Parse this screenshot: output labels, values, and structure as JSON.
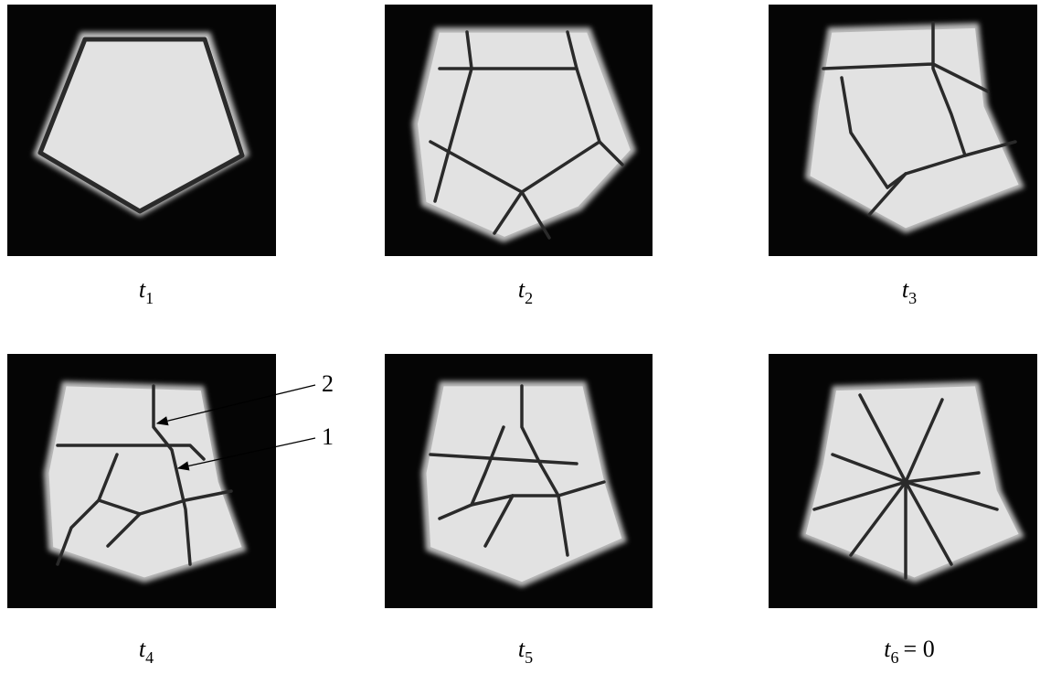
{
  "panels": [
    {
      "label": {
        "var": "t",
        "sub": "1"
      }
    },
    {
      "label": {
        "var": "t",
        "sub": "2"
      }
    },
    {
      "label": {
        "var": "t",
        "sub": "3"
      }
    },
    {
      "label": {
        "var": "t",
        "sub": "4"
      }
    },
    {
      "label": {
        "var": "t",
        "sub": "5"
      }
    },
    {
      "label": {
        "var": "t",
        "sub": "6",
        "rest": "= 0"
      }
    }
  ],
  "annotations": [
    "2",
    "1"
  ]
}
